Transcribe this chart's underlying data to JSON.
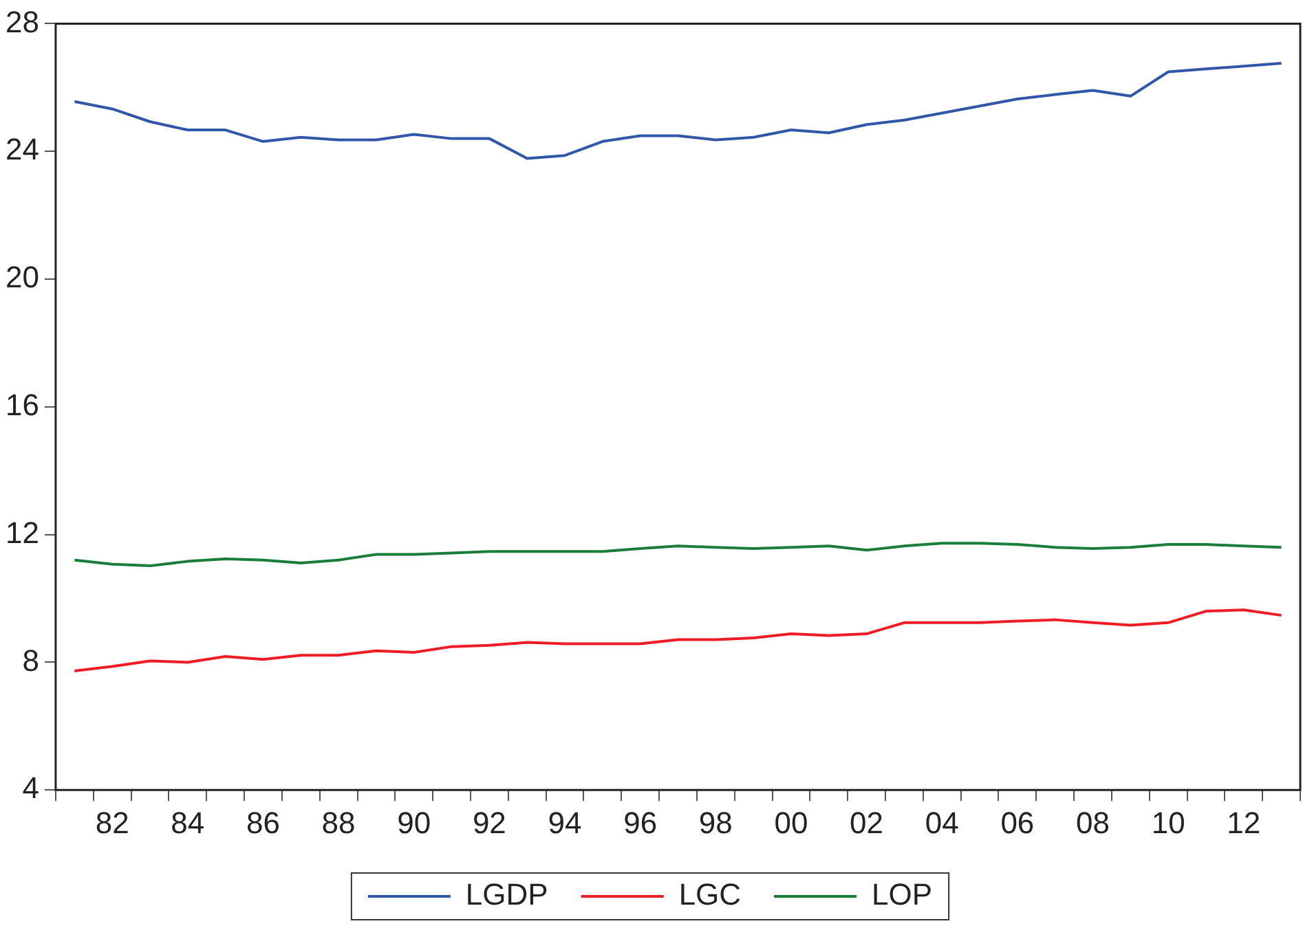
{
  "chart_data": {
    "type": "line",
    "categories": [
      null,
      "82",
      null,
      "84",
      null,
      "86",
      null,
      "88",
      null,
      "90",
      null,
      "92",
      null,
      "94",
      null,
      "96",
      null,
      "98",
      null,
      "00",
      null,
      "02",
      null,
      "04",
      null,
      "06",
      null,
      "08",
      null,
      "10",
      null,
      "12",
      null
    ],
    "series": [
      {
        "name": "LGDP",
        "color": "#3057a8",
        "values": [
          25.56,
          25.33,
          24.93,
          24.67,
          24.67,
          24.31,
          24.44,
          24.36,
          24.36,
          24.53,
          24.4,
          24.4,
          23.78,
          23.87,
          24.31,
          24.49,
          24.49,
          24.36,
          24.44,
          24.67,
          24.58,
          24.84,
          24.98,
          25.2,
          25.42,
          25.64,
          25.78,
          25.91,
          25.73,
          26.49,
          26.58,
          26.67,
          26.76
        ]
      },
      {
        "name": "LGC",
        "color": "#ee1c25",
        "values": [
          7.73,
          7.87,
          8.04,
          8.0,
          8.18,
          8.09,
          8.22,
          8.22,
          8.36,
          8.31,
          8.49,
          8.53,
          8.62,
          8.58,
          8.58,
          8.58,
          8.71,
          8.71,
          8.76,
          8.89,
          8.84,
          8.89,
          9.24,
          9.24,
          9.24,
          9.29,
          9.33,
          9.24,
          9.16,
          9.24,
          9.6,
          9.64,
          9.47
        ]
      },
      {
        "name": "LOP",
        "color": "#1a7d3a",
        "values": [
          11.2,
          11.07,
          11.02,
          11.16,
          11.24,
          11.2,
          11.11,
          11.2,
          11.38,
          11.38,
          11.42,
          11.47,
          11.47,
          11.47,
          11.47,
          11.56,
          11.64,
          11.6,
          11.56,
          11.6,
          11.64,
          11.51,
          11.64,
          11.73,
          11.73,
          11.69,
          11.6,
          11.56,
          11.6,
          11.69,
          11.69,
          11.64,
          11.6
        ]
      }
    ],
    "ylim": [
      4,
      28
    ],
    "yticks": [
      4,
      8,
      12,
      16,
      20,
      24,
      28
    ],
    "grid": false,
    "legend": "bottom",
    "marker": "none",
    "line_style": "solid"
  }
}
